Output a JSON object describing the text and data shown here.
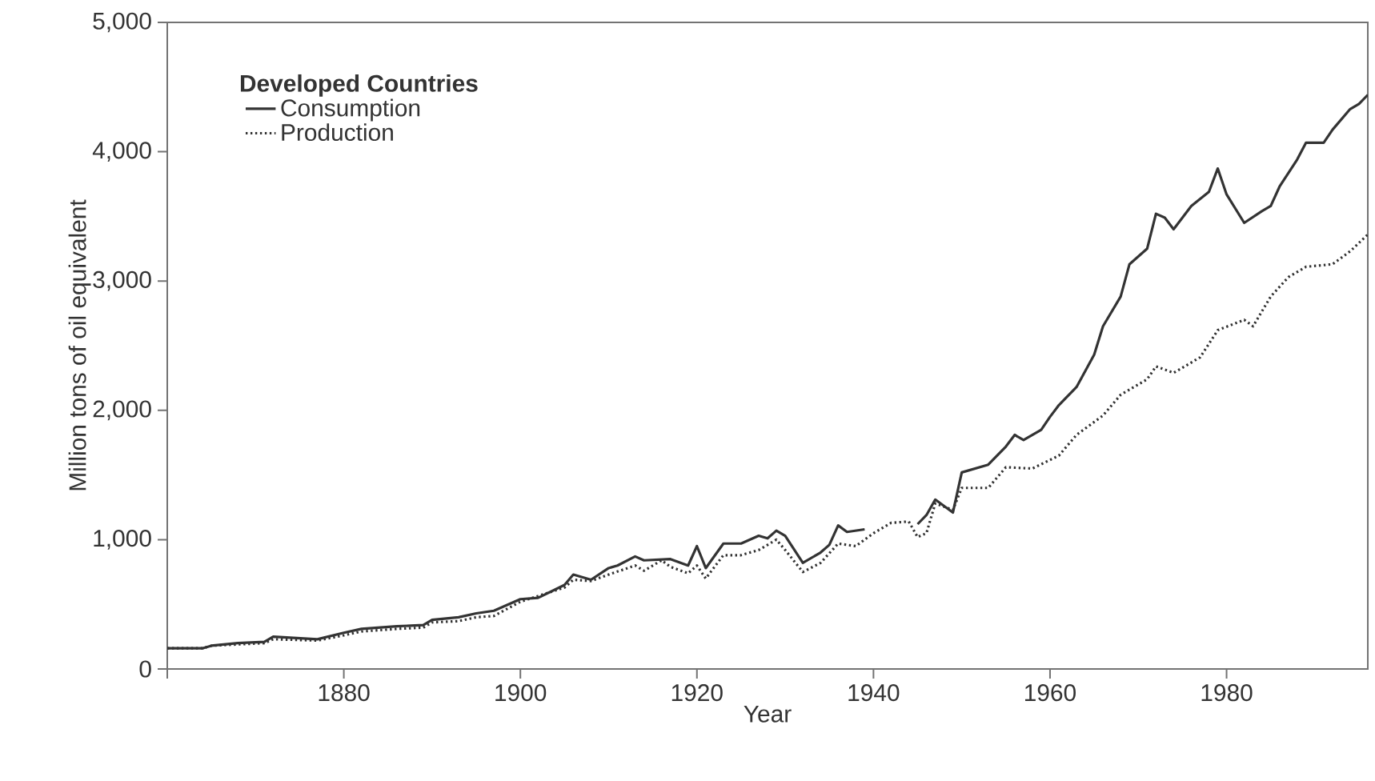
{
  "chart_data": {
    "type": "line",
    "xlabel": "Year",
    "ylabel": "Million tons of oil equivalent",
    "legend_title": "Developed Countries",
    "legend": "top left",
    "xlim": [
      1860,
      1996
    ],
    "xticks": [
      {
        "value": 1860,
        "label": null
      },
      1880,
      1900,
      1920,
      1940,
      1960,
      1980
    ],
    "ylim": [
      0,
      5000
    ],
    "yticks": [
      0,
      {
        "value": 1000,
        "label": "1,000"
      },
      {
        "value": 2000,
        "label": "2,000"
      },
      {
        "value": 3000,
        "label": "3,000"
      },
      {
        "value": 4000,
        "label": "4,000"
      },
      {
        "value": 5000,
        "label": "5,000"
      }
    ],
    "series": [
      {
        "name": "Consumption",
        "color": "#333333",
        "line_style": "solid",
        "x": [
          1860,
          1864,
          1865,
          1868,
          1871,
          1872,
          1877,
          1880,
          1882,
          1886,
          1889,
          1890,
          1893,
          1895,
          1897,
          1900,
          1902,
          1905,
          1906,
          1908,
          1910,
          1911,
          1913,
          1914,
          1917,
          1919,
          1920,
          1921,
          1923,
          1925,
          1927,
          1928,
          1929,
          1930,
          1932,
          1934,
          1935,
          1936,
          1937,
          1939,
          1942,
          1945,
          1946,
          1947,
          1949,
          1950,
          1953,
          1955,
          1956,
          1957,
          1959,
          1960,
          1961,
          1963,
          1965,
          1966,
          1968,
          1969,
          1971,
          1972,
          1973,
          1974,
          1976,
          1978,
          1979,
          1980,
          1982,
          1984,
          1985,
          1986,
          1988,
          1989,
          1991,
          1992,
          1994,
          1995,
          1996
        ],
        "values": [
          160,
          160,
          180,
          200,
          210,
          250,
          230,
          280,
          310,
          330,
          340,
          380,
          400,
          430,
          450,
          540,
          550,
          650,
          730,
          690,
          780,
          800,
          870,
          840,
          850,
          800,
          950,
          780,
          970,
          970,
          1030,
          1010,
          1070,
          1030,
          820,
          900,
          960,
          1110,
          1060,
          1080,
          null,
          1120,
          1190,
          1310,
          1210,
          1520,
          1580,
          1720,
          1810,
          1770,
          1850,
          1950,
          2040,
          2180,
          2430,
          2650,
          2880,
          3130,
          3250,
          3520,
          3490,
          3400,
          3580,
          3690,
          3870,
          3670,
          3450,
          3540,
          3580,
          3730,
          3940,
          4070,
          4070,
          4170,
          4330,
          4370,
          4440
        ]
      },
      {
        "name": "Production",
        "color": "#333333",
        "line_style": "dotted",
        "x": [
          1860,
          1864,
          1865,
          1871,
          1872,
          1877,
          1880,
          1882,
          1886,
          1889,
          1890,
          1893,
          1895,
          1897,
          1900,
          1905,
          1906,
          1908,
          1910,
          1913,
          1914,
          1916,
          1917,
          1919,
          1920,
          1921,
          1923,
          1925,
          1927,
          1929,
          1930,
          1932,
          1934,
          1936,
          1938,
          1940,
          1942,
          1944,
          1945,
          1946,
          1947,
          1949,
          1950,
          1953,
          1955,
          1958,
          1961,
          1963,
          1966,
          1968,
          1971,
          1972,
          1974,
          1977,
          1979,
          1982,
          1983,
          1985,
          1987,
          1989,
          1992,
          1994,
          1996
        ],
        "values": [
          160,
          160,
          180,
          200,
          230,
          220,
          260,
          290,
          310,
          320,
          360,
          370,
          400,
          410,
          520,
          630,
          690,
          680,
          730,
          800,
          760,
          840,
          790,
          740,
          800,
          700,
          880,
          880,
          920,
          1000,
          920,
          750,
          820,
          970,
          950,
          1050,
          1130,
          1140,
          1020,
          1050,
          1280,
          1230,
          1400,
          1400,
          1560,
          1550,
          1650,
          1810,
          1960,
          2120,
          2240,
          2340,
          2290,
          2410,
          2620,
          2700,
          2650,
          2880,
          3030,
          3110,
          3130,
          3230,
          3360
        ]
      }
    ]
  }
}
